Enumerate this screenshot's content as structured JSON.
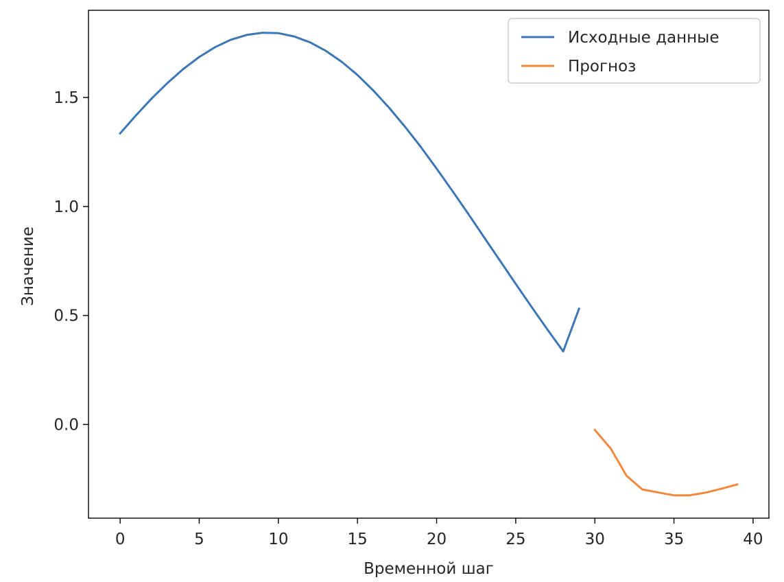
{
  "chart_data": {
    "type": "line",
    "xlabel": "Временной шаг",
    "ylabel": "Значение",
    "xlim": [
      -2,
      41
    ],
    "ylim": [
      -0.43,
      1.9
    ],
    "xticks": [
      0,
      5,
      10,
      15,
      20,
      25,
      30,
      35,
      40
    ],
    "xtick_labels": [
      "0",
      "5",
      "10",
      "15",
      "20",
      "25",
      "30",
      "35",
      "40"
    ],
    "yticks": [
      0.0,
      0.5,
      1.0,
      1.5
    ],
    "ytick_labels": [
      "0.0",
      "0.5",
      "1.0",
      "1.5"
    ],
    "grid": false,
    "legend_position": "top-right",
    "series": [
      {
        "name": "Исходные данные",
        "color": "#3c77b3",
        "x": [
          0,
          1,
          2,
          3,
          4,
          5,
          6,
          7,
          8,
          9,
          10,
          11,
          12,
          13,
          14,
          15,
          16,
          17,
          18,
          19,
          20,
          21,
          22,
          23,
          24,
          25,
          26,
          27,
          28,
          29
        ],
        "y": [
          1.335,
          1.418,
          1.496,
          1.567,
          1.631,
          1.686,
          1.731,
          1.765,
          1.787,
          1.797,
          1.795,
          1.78,
          1.753,
          1.714,
          1.664,
          1.603,
          1.532,
          1.453,
          1.366,
          1.273,
          1.174,
          1.071,
          0.966,
          0.859,
          0.752,
          0.645,
          0.539,
          0.436,
          0.335,
          0.531
        ]
      },
      {
        "name": "Прогноз",
        "color": "#f0883e",
        "x": [
          30,
          31,
          32,
          33,
          34,
          35,
          36,
          37,
          38,
          39
        ],
        "y": [
          -0.025,
          -0.11,
          -0.235,
          -0.298,
          -0.312,
          -0.325,
          -0.325,
          -0.313,
          -0.295,
          -0.275
        ]
      }
    ]
  }
}
